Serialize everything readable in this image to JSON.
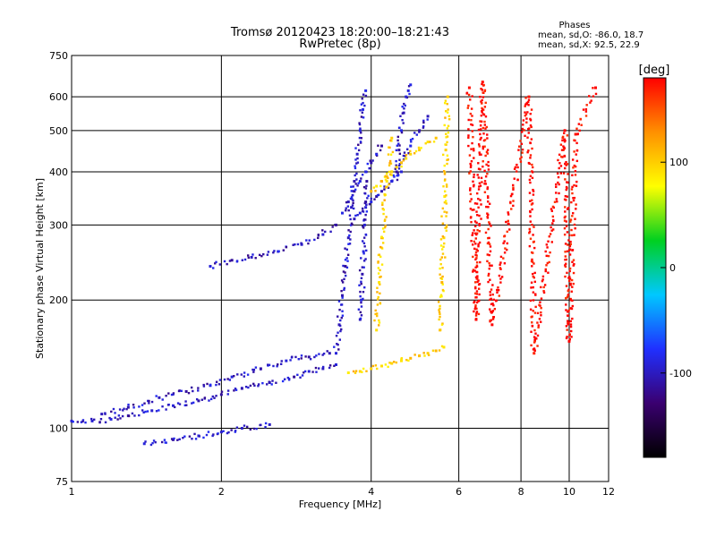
{
  "chart_data": {
    "type": "scatter",
    "title": "Tromsø 20120423 18:20:00–18:21:43",
    "subtitle": "RwPretec (8p)",
    "xlabel": "Frequency [MHz]",
    "ylabel": "Stationary phase Virtual Height [km]",
    "x_scale": "log",
    "y_scale": "log",
    "xlim": [
      1,
      12
    ],
    "ylim": [
      75,
      750
    ],
    "x_ticks": [
      1,
      2,
      4,
      6,
      8,
      10,
      12
    ],
    "y_ticks": [
      75,
      100,
      200,
      300,
      400,
      500,
      600,
      750
    ],
    "grid": true,
    "phase_stats": {
      "title": "Phases",
      "line_o": "mean, sd,O: -86.0, 18.7",
      "line_x": "mean, sd,X:  92.5, 22.9"
    },
    "colorbar": {
      "label": "[deg]",
      "range": [
        -180,
        180
      ],
      "ticks": [
        100,
        0,
        -100
      ],
      "colormap": [
        "#000000",
        "#3a0070",
        "#2030ff",
        "#00c8ff",
        "#00d020",
        "#ffff00",
        "#ff9000",
        "#ff0000"
      ]
    },
    "series": [
      {
        "phase_deg": -100,
        "traces": [
          {
            "x": [
              1.0,
              1.1,
              1.2,
              1.3,
              1.45,
              1.6,
              1.8,
              2.0,
              2.2,
              2.5,
              2.8,
              3.0,
              3.2,
              3.4
            ],
            "y": [
              104,
              104,
              105,
              107,
              110,
              113,
              116,
              120,
              124,
              128,
              132,
              136,
              138,
              141
            ]
          },
          {
            "x": [
              1.15,
              1.3,
              1.5,
              1.7,
              1.9,
              2.1,
              2.4,
              2.7,
              3.0,
              3.3
            ],
            "y": [
              108,
              112,
              118,
              122,
              126,
              132,
              138,
              144,
              147,
              150
            ]
          },
          {
            "x": [
              1.4,
              1.6,
              1.8,
              2.0,
              2.2,
              2.5
            ],
            "y": [
              92,
              94,
              96,
              98,
              100,
              102
            ]
          },
          {
            "x": [
              1.9,
              2.1,
              2.3,
              2.6,
              2.9,
              3.2,
              3.4
            ],
            "y": [
              240,
              248,
              252,
              260,
              270,
              285,
              300
            ]
          },
          {
            "x": [
              3.4,
              3.45,
              3.5,
              3.55,
              3.6,
              3.65,
              3.7,
              3.75,
              3.8,
              3.85,
              3.9
            ],
            "y": [
              150,
              175,
              205,
              240,
              280,
              330,
              380,
              440,
              500,
              560,
              620
            ]
          },
          {
            "x": [
              3.5,
              3.6,
              3.7,
              3.8,
              3.9,
              4.0,
              4.1,
              4.2
            ],
            "y": [
              320,
              340,
              360,
              380,
              400,
              420,
              440,
              460
            ]
          },
          {
            "x": [
              3.7,
              3.8,
              3.9,
              4.0,
              4.1,
              4.2,
              4.4,
              4.6
            ],
            "y": [
              310,
              320,
              330,
              340,
              350,
              360,
              380,
              400
            ]
          },
          {
            "x": [
              4.5,
              4.55,
              4.6,
              4.65,
              4.7,
              4.75,
              4.8
            ],
            "y": [
              400,
              450,
              500,
              550,
              600,
              620,
              640
            ]
          },
          {
            "x": [
              4.4,
              4.6,
              4.8,
              5.0,
              5.2
            ],
            "y": [
              380,
              420,
              460,
              500,
              540
            ]
          },
          {
            "x": [
              3.8,
              3.82,
              3.84,
              3.86,
              3.88,
              3.9,
              3.92
            ],
            "y": [
              180,
              200,
              230,
              260,
              300,
              340,
              380
            ]
          }
        ]
      },
      {
        "phase_deg": 100,
        "traces": [
          {
            "x": [
              3.6,
              3.8,
              4.0,
              4.2,
              4.4,
              4.6,
              4.8,
              5.0,
              5.2,
              5.4,
              5.6
            ],
            "y": [
              135,
              136,
              138,
              140,
              142,
              144,
              146,
              148,
              150,
              152,
              155
            ]
          },
          {
            "x": [
              4.0,
              4.1,
              4.2,
              4.3,
              4.4,
              4.5,
              4.6,
              4.7,
              4.8,
              5.0,
              5.2,
              5.4
            ],
            "y": [
              360,
              370,
              380,
              390,
              400,
              410,
              420,
              430,
              440,
              450,
              470,
              480
            ]
          },
          {
            "x": [
              5.5,
              5.55,
              5.6,
              5.62,
              5.65,
              5.7
            ],
            "y": [
              170,
              220,
              280,
              350,
              450,
              600
            ]
          },
          {
            "x": [
              4.1,
              4.15,
              4.2,
              4.3,
              4.4
            ],
            "y": [
              170,
              220,
              280,
              380,
              480
            ]
          }
        ]
      },
      {
        "phase_deg": 180,
        "traces": [
          {
            "x": [
              6.3,
              6.5,
              6.7,
              7.0,
              8.3,
              8.5,
              9.8,
              10.0,
              10.3,
              11.3
            ],
            "y": [
              630,
              180,
              650,
              175,
              600,
              150,
              500,
              160,
              490,
              630
            ]
          }
        ]
      }
    ]
  }
}
